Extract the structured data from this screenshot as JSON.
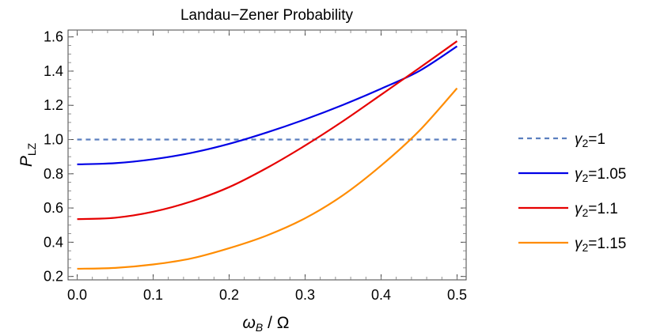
{
  "chart_data": {
    "type": "line",
    "title": "Landau−Zener Probability",
    "xlabel": {
      "main": "ω",
      "sub": "B",
      "rest": " / Ω"
    },
    "ylabel": {
      "main": "P",
      "sub": "LZ"
    },
    "xlim": [
      -0.012,
      0.512
    ],
    "ylim": [
      0.18,
      1.64
    ],
    "x_ticks": [
      "0.0",
      "0.1",
      "0.2",
      "0.3",
      "0.4",
      "0.5"
    ],
    "y_ticks": [
      "0.2",
      "0.4",
      "0.6",
      "0.8",
      "1.0",
      "1.2",
      "1.4",
      "1.6"
    ],
    "grid": false,
    "legend_position": "right",
    "x": [
      0.0,
      0.05,
      0.1,
      0.15,
      0.2,
      0.25,
      0.3,
      0.35,
      0.4,
      0.45,
      0.5
    ],
    "series": [
      {
        "name": {
          "main": "γ",
          "sub": "2",
          "rest": "=1"
        },
        "color": "#5b7fbf",
        "dashed": true,
        "values": [
          1.0,
          1.0,
          1.0,
          1.0,
          1.0,
          1.0,
          1.0,
          1.0,
          1.0,
          1.0,
          1.0
        ]
      },
      {
        "name": {
          "main": "γ",
          "sub": "2",
          "rest": "=1.05"
        },
        "color": "#0000e6",
        "dashed": false,
        "values": [
          0.855,
          0.862,
          0.885,
          0.922,
          0.975,
          1.042,
          1.118,
          1.203,
          1.297,
          1.4,
          1.545
        ]
      },
      {
        "name": {
          "main": "γ",
          "sub": "2",
          "rest": "=1.1"
        },
        "color": "#e60000",
        "dashed": false,
        "values": [
          0.535,
          0.543,
          0.578,
          0.638,
          0.722,
          0.835,
          0.965,
          1.108,
          1.262,
          1.417,
          1.575
        ]
      },
      {
        "name": {
          "main": "γ",
          "sub": "2",
          "rest": "=1.15"
        },
        "color": "#ff8c00",
        "dashed": false,
        "values": [
          0.245,
          0.25,
          0.27,
          0.305,
          0.365,
          0.44,
          0.54,
          0.675,
          0.848,
          1.05,
          1.3
        ]
      }
    ]
  }
}
